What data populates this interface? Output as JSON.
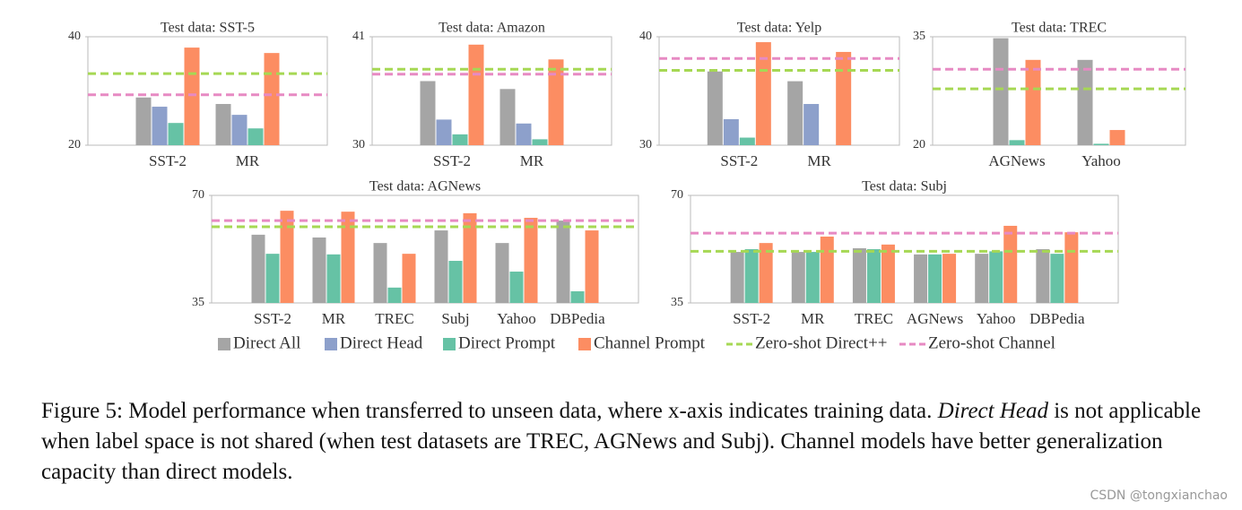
{
  "chart_data": [
    {
      "type": "bar",
      "title": "Test data: SST-5",
      "categories": [
        "SST-2",
        "MR"
      ],
      "ylim": [
        20,
        40
      ],
      "yticks": [
        20,
        40
      ],
      "series": [
        {
          "values": [
            28.8,
            27.6
          ]
        },
        {
          "values": [
            27.1,
            25.6
          ]
        },
        {
          "values": [
            24.1,
            23.1
          ]
        },
        {
          "values": [
            38.0,
            37.0
          ]
        }
      ],
      "reference_lines": [
        {
          "value": 33.2
        },
        {
          "value": 29.3
        }
      ]
    },
    {
      "type": "bar",
      "title": "Test data: Amazon",
      "categories": [
        "SST-2",
        "MR"
      ],
      "ylim": [
        30,
        41
      ],
      "yticks": [
        30,
        41
      ],
      "series": [
        {
          "values": [
            36.5,
            35.7
          ]
        },
        {
          "values": [
            32.6,
            32.2
          ]
        },
        {
          "values": [
            31.1,
            30.6
          ]
        },
        {
          "values": [
            40.2,
            38.7
          ]
        }
      ],
      "reference_lines": [
        {
          "value": 37.7
        },
        {
          "value": 37.2
        }
      ]
    },
    {
      "type": "bar",
      "title": "Test data: Yelp",
      "categories": [
        "SST-2",
        "MR"
      ],
      "ylim": [
        30,
        40
      ],
      "yticks": [
        30,
        40
      ],
      "series": [
        {
          "values": [
            36.8,
            35.9
          ]
        },
        {
          "values": [
            32.4,
            33.8
          ]
        },
        {
          "values": [
            30.7,
            null
          ]
        },
        {
          "values": [
            39.5,
            38.6
          ]
        }
      ],
      "reference_lines": [
        {
          "value": 36.9
        },
        {
          "value": 38.0
        }
      ]
    },
    {
      "type": "bar",
      "title": "Test data: TREC",
      "categories": [
        "AGNews",
        "Yahoo"
      ],
      "ylim": [
        20,
        35
      ],
      "yticks": [
        20,
        35
      ],
      "series": [
        {
          "values": [
            34.8,
            31.8
          ]
        },
        {
          "values": [
            null,
            null
          ]
        },
        {
          "values": [
            20.7,
            20.2
          ]
        },
        {
          "values": [
            31.8,
            22.1
          ]
        }
      ],
      "reference_lines": [
        {
          "value": 27.8
        },
        {
          "value": 30.5
        }
      ]
    },
    {
      "type": "bar",
      "title": "Test data: AGNews",
      "categories": [
        "SST-2",
        "MR",
        "TREC",
        "Subj",
        "Yahoo",
        "DBPedia"
      ],
      "ylim": [
        35,
        70
      ],
      "yticks": [
        35,
        70
      ],
      "series": [
        {
          "values": [
            57.2,
            56.3,
            54.5,
            58.6,
            54.5,
            61.8
          ]
        },
        {
          "values": [
            null,
            null,
            null,
            null,
            null,
            null
          ]
        },
        {
          "values": [
            51.0,
            50.8,
            40.0,
            48.7,
            45.2,
            38.8
          ]
        },
        {
          "values": [
            65.0,
            64.7,
            51.0,
            64.2,
            62.7,
            58.6
          ]
        }
      ],
      "reference_lines": [
        {
          "value": 59.8
        },
        {
          "value": 61.8
        }
      ]
    },
    {
      "type": "bar",
      "title": "Test data: Subj",
      "categories": [
        "SST-2",
        "MR",
        "TREC",
        "AGNews",
        "Yahoo",
        "DBPedia"
      ],
      "ylim": [
        35,
        70
      ],
      "yticks": [
        35,
        70
      ],
      "series": [
        {
          "values": [
            51.6,
            51.6,
            52.8,
            50.8,
            51.0,
            52.5
          ]
        },
        {
          "values": [
            null,
            null,
            null,
            null,
            null,
            null
          ]
        },
        {
          "values": [
            52.5,
            51.6,
            52.5,
            50.8,
            51.8,
            51.0
          ]
        },
        {
          "values": [
            54.5,
            56.6,
            54.0,
            51.0,
            60.1,
            58.0
          ]
        }
      ],
      "reference_lines": [
        {
          "value": 51.8
        },
        {
          "value": 57.7
        }
      ]
    }
  ],
  "legend": {
    "series": [
      {
        "name": "Direct All",
        "color": "#a5a5a5"
      },
      {
        "name": "Direct Head",
        "color": "#8da0cb"
      },
      {
        "name": "Direct Prompt",
        "color": "#66c2a5"
      },
      {
        "name": "Channel Prompt",
        "color": "#fc8d62"
      }
    ],
    "lines": [
      {
        "name": "Zero-shot Direct++",
        "color": "#a6d854"
      },
      {
        "name": "Zero-shot Channel",
        "color": "#e78ac3"
      }
    ]
  },
  "caption": {
    "before": "Figure 5: Model performance when transferred to unseen data, where x-axis indicates training data. ",
    "emphasis": "Direct Head",
    "after": " is not applicable when label space is not shared (when test datasets are TREC, AGNews and Subj). Channel models have better generalization capacity than direct models."
  },
  "watermark": "CSDN @tongxianchao"
}
